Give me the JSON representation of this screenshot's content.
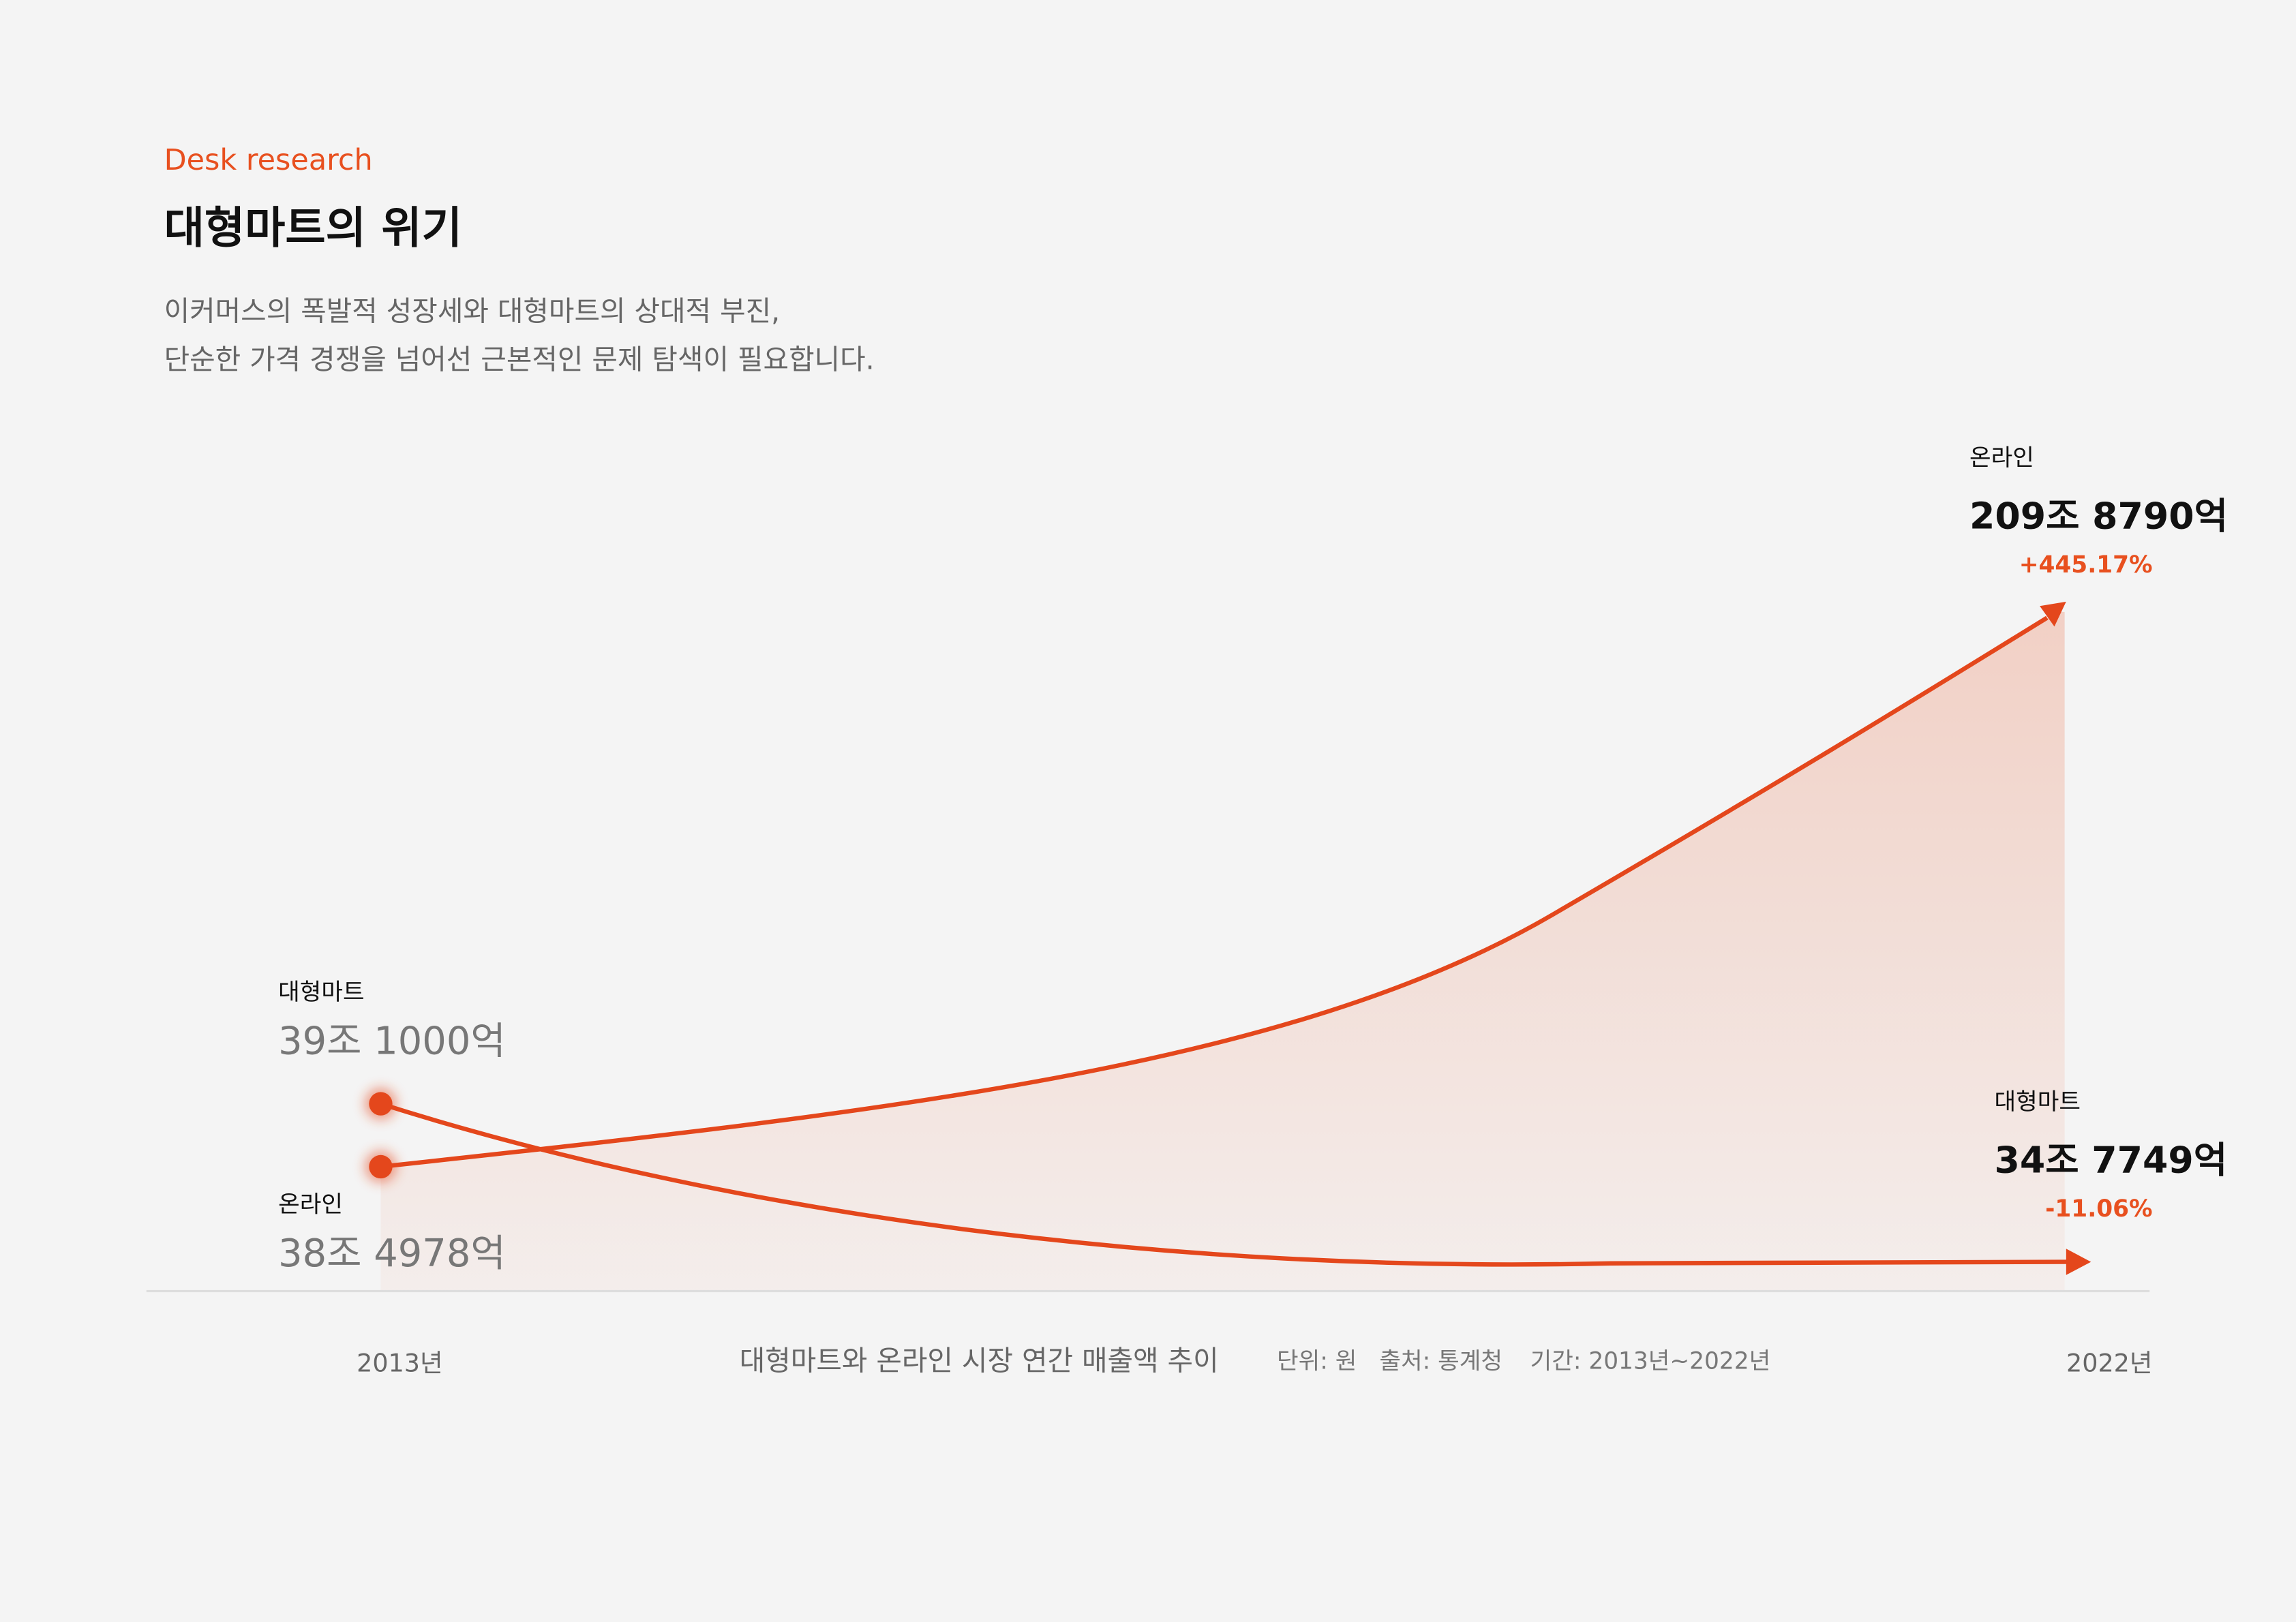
{
  "header": {
    "eyebrow": "Desk research",
    "title": "대형마트의 위기",
    "description": [
      "이커머스의 폭발적 성장세와 대형마트의 상대적 부진,",
      "단순한 가격 경쟁을 넘어선 근본적인 문제 탐색이 필요합니다."
    ]
  },
  "labels": {
    "start": [
      {
        "name": "대형마트",
        "value": "39조 1000억"
      },
      {
        "name": "온라인",
        "value": "38조 4978억"
      }
    ],
    "end": [
      {
        "name": "온라인",
        "value": "209조 8790억",
        "change": "+445.17%"
      },
      {
        "name": "대형마트",
        "value": "34조 7749억",
        "change": "-11.06%"
      }
    ]
  },
  "axis": {
    "start": "2013년",
    "end": "2022년"
  },
  "caption": {
    "title": "대형마트와 온라인 시장 연간 매출액 추이",
    "unit": "단위: 원",
    "source": "출처: 통계청",
    "period": "기간: 2013년~2022년"
  }
}
